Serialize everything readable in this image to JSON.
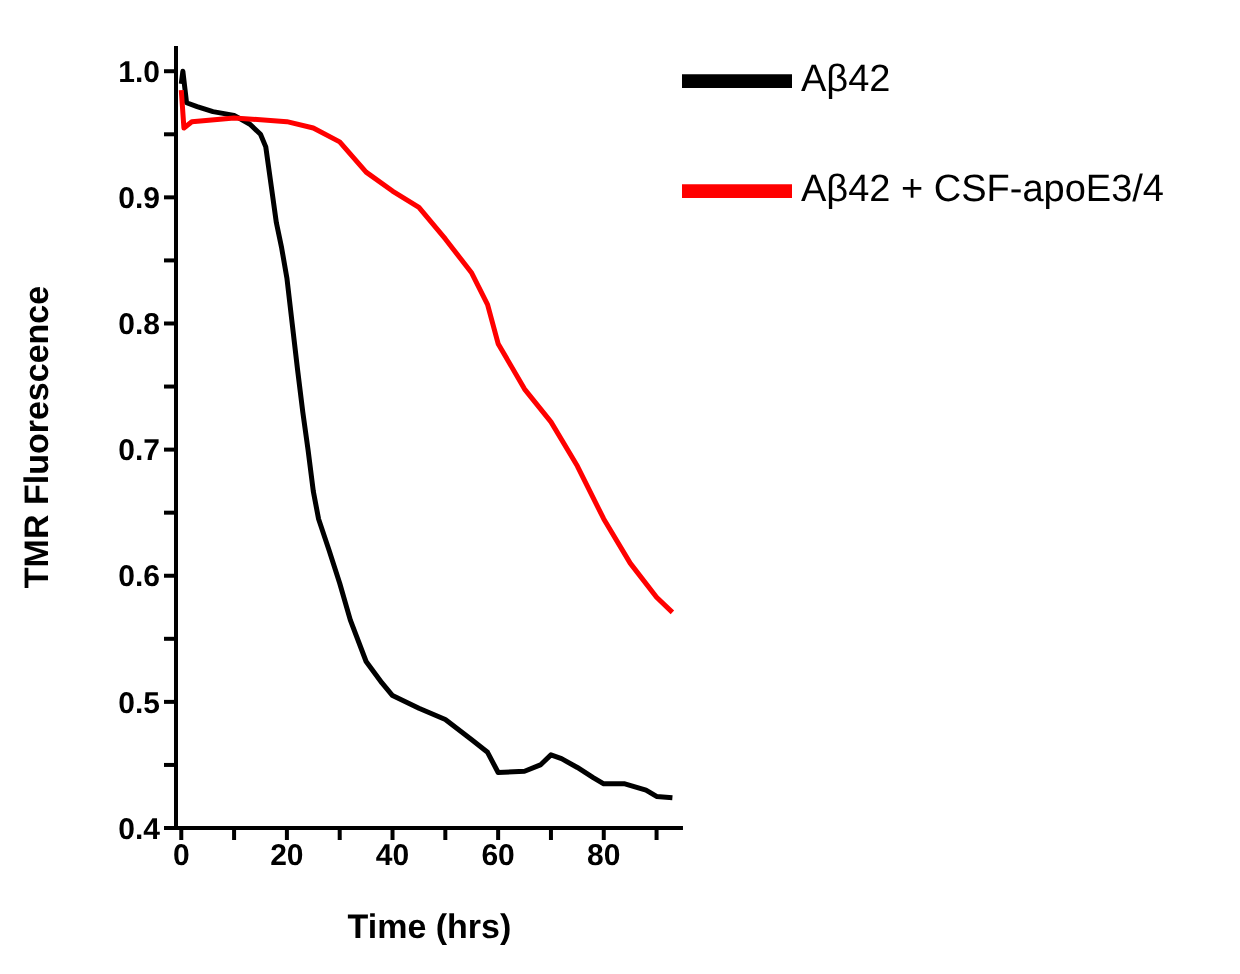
{
  "chart_data": {
    "type": "line",
    "xlabel": "Time (hrs)",
    "ylabel": "TMR Fluorescence",
    "xlim": [
      -1,
      95
    ],
    "xticks": [
      0,
      {
        "value": 10,
        "label": null
      },
      20,
      {
        "value": 30,
        "label": null
      },
      40,
      {
        "value": 50,
        "label": null
      },
      60,
      {
        "value": 70,
        "label": null
      },
      80,
      {
        "value": 90,
        "label": null
      }
    ],
    "ylim": [
      0.4,
      1.02
    ],
    "yticks": [
      {
        "value": 0.4,
        "label": "0.4"
      },
      {
        "value": 0.45,
        "label": null
      },
      {
        "value": 0.5,
        "label": "0.5"
      },
      {
        "value": 0.55,
        "label": null
      },
      {
        "value": 0.6,
        "label": "0.6"
      },
      {
        "value": 0.65,
        "label": null
      },
      {
        "value": 0.7,
        "label": "0.7"
      },
      {
        "value": 0.75,
        "label": null
      },
      {
        "value": 0.8,
        "label": "0.8"
      },
      {
        "value": 0.85,
        "label": null
      },
      {
        "value": 0.9,
        "label": "0.9"
      },
      {
        "value": 0.95,
        "label": null
      },
      {
        "value": 1.0,
        "label": "1.0"
      }
    ],
    "grid": false,
    "legend": "top right",
    "marker": "none",
    "line_style": "solid",
    "series": [
      {
        "name": "Aβ42",
        "color": "#000000",
        "x": [
          0,
          0.3,
          1,
          3,
          6,
          10,
          13,
          15,
          16,
          17,
          18,
          19,
          20,
          21,
          22,
          23,
          24,
          25,
          26,
          28,
          30,
          32,
          35,
          38,
          40,
          45,
          50,
          55,
          58,
          60,
          65,
          68,
          70,
          72,
          75,
          78,
          80,
          84,
          88,
          90,
          93
        ],
        "values": [
          0.99,
          1.0,
          0.975,
          0.972,
          0.968,
          0.965,
          0.958,
          0.95,
          0.94,
          0.91,
          0.88,
          0.86,
          0.836,
          0.8,
          0.764,
          0.73,
          0.7,
          0.667,
          0.645,
          0.62,
          0.594,
          0.565,
          0.532,
          0.515,
          0.505,
          0.495,
          0.486,
          0.47,
          0.46,
          0.444,
          0.445,
          0.45,
          0.458,
          0.455,
          0.448,
          0.44,
          0.435,
          0.435,
          0.43,
          0.425,
          0.424
        ]
      },
      {
        "name": "Aβ42 + CSF-apoE3/4",
        "color": "#ff0000",
        "x": [
          0,
          0.5,
          2,
          10,
          20,
          25,
          30,
          35,
          40,
          45,
          50,
          55,
          58,
          60,
          65,
          70,
          75,
          80,
          85,
          90,
          93
        ],
        "values": [
          0.985,
          0.955,
          0.96,
          0.963,
          0.96,
          0.955,
          0.944,
          0.92,
          0.905,
          0.892,
          0.867,
          0.84,
          0.815,
          0.784,
          0.748,
          0.722,
          0.687,
          0.645,
          0.61,
          0.583,
          0.571
        ]
      }
    ]
  }
}
